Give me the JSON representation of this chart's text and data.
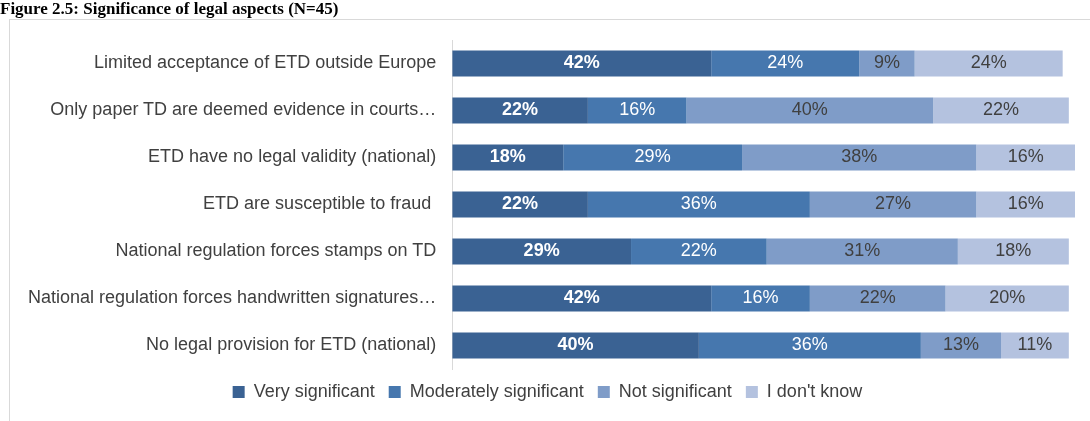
{
  "chart_data": {
    "type": "bar",
    "title": "Figure 2.5: Significance of legal aspects (N=45)",
    "orientation": "horizontal",
    "stacked": true,
    "tick_labels": "y",
    "legend": "bottom",
    "categories": [
      "Limited acceptance of ETD outside Europe",
      "Only paper TD are deemed evidence in courts…",
      "ETD have no legal validity (national)",
      "ETD are susceptible to fraud ",
      "National regulation forces stamps on TD",
      "National regulation forces handwritten signatures…",
      "No legal provision for ETD (national)"
    ],
    "series": [
      {
        "name": "Very significant",
        "color": "#3a6293",
        "values": [
          42,
          22,
          18,
          22,
          29,
          42,
          40
        ],
        "value_labels": [
          "42%",
          "22%",
          "18%",
          "22%",
          "29%",
          "42%",
          "40%"
        ]
      },
      {
        "name": "Moderately significant",
        "color": "#4677ae",
        "values": [
          24,
          16,
          29,
          36,
          22,
          16,
          36
        ],
        "value_labels": [
          "24%",
          "16%",
          "29%",
          "36%",
          "22%",
          "16%",
          "36%"
        ]
      },
      {
        "name": "Not significant",
        "color": "#7f9cc8",
        "values": [
          9,
          40,
          38,
          27,
          31,
          22,
          13
        ],
        "value_labels": [
          "9%",
          "40%",
          "38%",
          "27%",
          "31%",
          "22%",
          "13%"
        ]
      },
      {
        "name": "I don't know",
        "color": "#b4c2df",
        "values": [
          24,
          22,
          16,
          16,
          18,
          20,
          11
        ],
        "value_labels": [
          "24%",
          "22%",
          "16%",
          "16%",
          "18%",
          "20%",
          "11%"
        ]
      }
    ]
  }
}
